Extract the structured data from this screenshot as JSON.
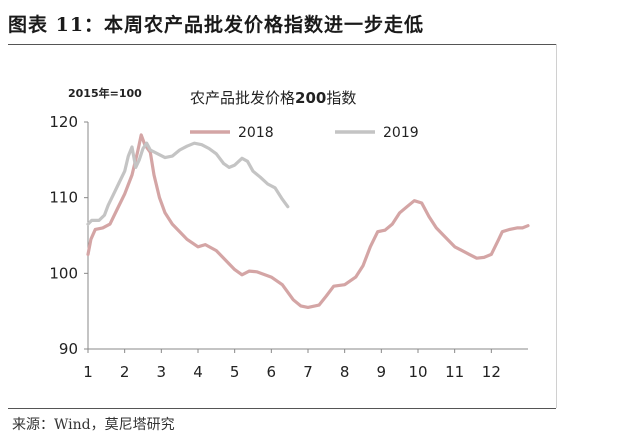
{
  "figure": {
    "title": "图表 11：本周农产品批发价格指数进一步走低",
    "source": "来源：Wind，莫尼塔研究"
  },
  "chart_data": {
    "type": "line",
    "title_pre": "农产品批发价格",
    "title_num": "200",
    "title_post": "指数",
    "unit_note": "2015年=100",
    "ylim": [
      90,
      120
    ],
    "yticks": [
      90,
      100,
      110,
      120
    ],
    "xlim": [
      1,
      13
    ],
    "xticks": [
      "1",
      "2",
      "3",
      "4",
      "5",
      "6",
      "7",
      "8",
      "9",
      "10",
      "11",
      "12"
    ],
    "legend_position": "top",
    "grid": false,
    "series": [
      {
        "name": "2018",
        "color": "#d4a5a5",
        "points": [
          [
            1.0,
            102.5
          ],
          [
            1.08,
            104.5
          ],
          [
            1.2,
            105.8
          ],
          [
            1.4,
            106.0
          ],
          [
            1.6,
            106.5
          ],
          [
            1.8,
            108.5
          ],
          [
            2.0,
            110.5
          ],
          [
            2.2,
            113.0
          ],
          [
            2.35,
            116.0
          ],
          [
            2.45,
            118.3
          ],
          [
            2.55,
            117.0
          ],
          [
            2.7,
            116.0
          ],
          [
            2.8,
            113.0
          ],
          [
            2.95,
            110.0
          ],
          [
            3.1,
            108.0
          ],
          [
            3.3,
            106.5
          ],
          [
            3.5,
            105.5
          ],
          [
            3.7,
            104.5
          ],
          [
            4.0,
            103.5
          ],
          [
            4.2,
            103.8
          ],
          [
            4.5,
            103.0
          ],
          [
            4.8,
            101.5
          ],
          [
            5.0,
            100.5
          ],
          [
            5.2,
            99.8
          ],
          [
            5.4,
            100.3
          ],
          [
            5.6,
            100.2
          ],
          [
            6.0,
            99.5
          ],
          [
            6.3,
            98.5
          ],
          [
            6.6,
            96.5
          ],
          [
            6.8,
            95.7
          ],
          [
            7.0,
            95.5
          ],
          [
            7.3,
            95.8
          ],
          [
            7.5,
            97.0
          ],
          [
            7.7,
            98.3
          ],
          [
            8.0,
            98.5
          ],
          [
            8.3,
            99.5
          ],
          [
            8.5,
            101.0
          ],
          [
            8.7,
            103.5
          ],
          [
            8.9,
            105.5
          ],
          [
            9.1,
            105.7
          ],
          [
            9.3,
            106.5
          ],
          [
            9.5,
            108.0
          ],
          [
            9.7,
            108.8
          ],
          [
            9.9,
            109.6
          ],
          [
            10.1,
            109.3
          ],
          [
            10.3,
            107.5
          ],
          [
            10.5,
            106.0
          ],
          [
            10.7,
            105.0
          ],
          [
            11.0,
            103.5
          ],
          [
            11.2,
            103.0
          ],
          [
            11.4,
            102.5
          ],
          [
            11.6,
            102.0
          ],
          [
            11.8,
            102.1
          ],
          [
            12.0,
            102.5
          ],
          [
            12.2,
            104.5
          ],
          [
            12.3,
            105.5
          ],
          [
            12.5,
            105.8
          ],
          [
            12.7,
            106.0
          ],
          [
            12.85,
            106.0
          ],
          [
            13.0,
            106.3
          ]
        ]
      },
      {
        "name": "2019",
        "color": "#c4c4c4",
        "points": [
          [
            1.0,
            106.5
          ],
          [
            1.1,
            107.0
          ],
          [
            1.3,
            107.0
          ],
          [
            1.45,
            107.7
          ],
          [
            1.55,
            109.0
          ],
          [
            1.7,
            110.5
          ],
          [
            1.85,
            112.0
          ],
          [
            2.0,
            113.5
          ],
          [
            2.1,
            115.5
          ],
          [
            2.2,
            116.7
          ],
          [
            2.3,
            114.0
          ],
          [
            2.4,
            115.0
          ],
          [
            2.5,
            116.5
          ],
          [
            2.6,
            117.2
          ],
          [
            2.7,
            116.3
          ],
          [
            2.9,
            115.8
          ],
          [
            3.1,
            115.3
          ],
          [
            3.3,
            115.5
          ],
          [
            3.5,
            116.3
          ],
          [
            3.7,
            116.8
          ],
          [
            3.9,
            117.2
          ],
          [
            4.1,
            117.0
          ],
          [
            4.3,
            116.5
          ],
          [
            4.5,
            115.8
          ],
          [
            4.7,
            114.5
          ],
          [
            4.85,
            114.0
          ],
          [
            5.0,
            114.3
          ],
          [
            5.2,
            115.2
          ],
          [
            5.35,
            114.8
          ],
          [
            5.5,
            113.5
          ],
          [
            5.7,
            112.7
          ],
          [
            5.9,
            111.8
          ],
          [
            6.1,
            111.3
          ],
          [
            6.3,
            109.8
          ],
          [
            6.45,
            108.8
          ]
        ]
      }
    ]
  }
}
